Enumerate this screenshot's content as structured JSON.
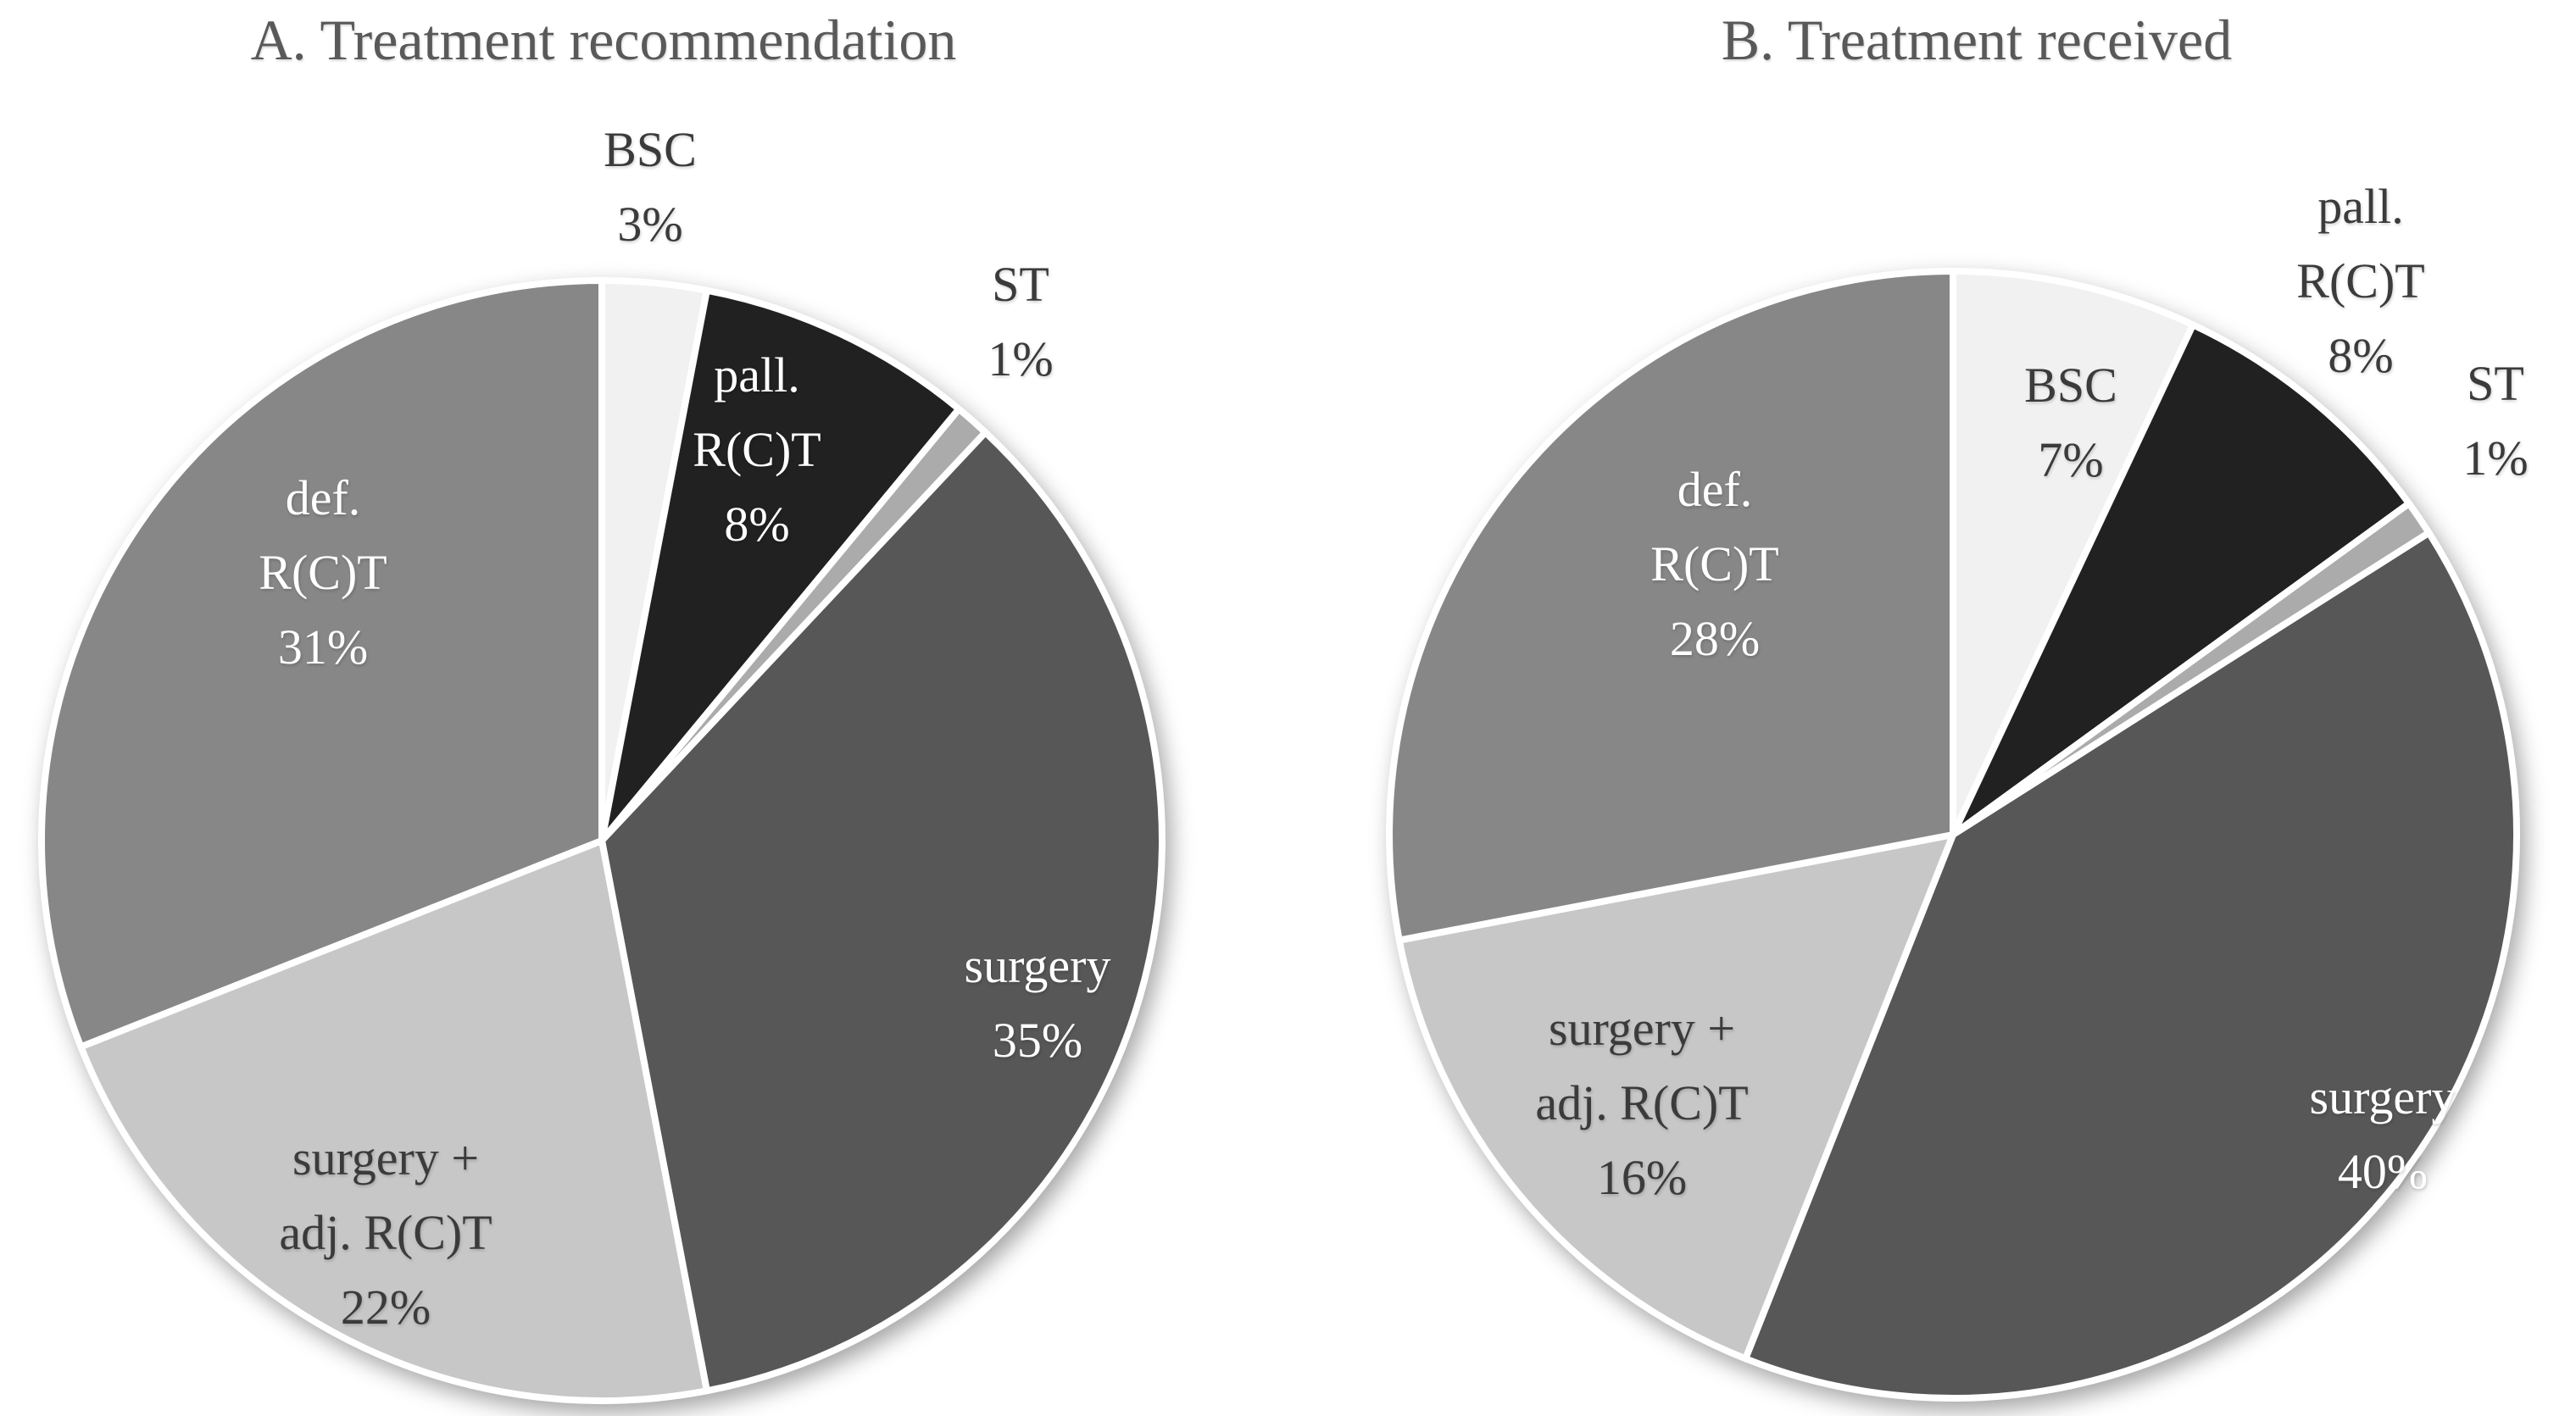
{
  "figure": {
    "background": "#ffffff",
    "title_color": "#595959",
    "label_color_dark": "#3b3b3b",
    "label_color_light": "#ffffff"
  },
  "chart_data": [
    {
      "type": "pie",
      "title": "A. Treatment recommendation",
      "direction": "clockwise",
      "start_angle_deg": 0,
      "values_unit": "percent",
      "legend": "none",
      "slices": [
        {
          "label": "BSC",
          "value": 3,
          "pct_label": "3%",
          "color": "#f1f1f1",
          "label_lines": [
            "BSC"
          ],
          "placement": "outside",
          "label_r": 1.17,
          "label_angle": 4.2,
          "text": "dark"
        },
        {
          "label": "pall. R(C)T",
          "value": 8,
          "pct_label": "8%",
          "color": "#212121",
          "label_lines": [
            "pall.",
            "R(C)T"
          ],
          "placement": "inside",
          "label_r": 0.75,
          "label_angle": 21.7,
          "text": "light"
        },
        {
          "label": "ST",
          "value": 1,
          "pct_label": "1%",
          "color": "#ababab",
          "label_lines": [
            "ST"
          ],
          "placement": "outside",
          "label_r": 1.19,
          "label_angle": 38.9,
          "text": "dark"
        },
        {
          "label": "surgery",
          "value": 35,
          "pct_label": "35%",
          "color": "#575757",
          "label_lines": [
            "surgery"
          ],
          "placement": "inside",
          "label_r": 0.83,
          "label_angle": 110.5,
          "text": "light"
        },
        {
          "label": "surgery + adj. R(C)T",
          "value": 22,
          "pct_label": "22%",
          "color": "#c7c7c7",
          "label_lines": [
            "surgery +",
            "adj. R(C)T"
          ],
          "placement": "inside",
          "label_r": 0.8,
          "label_angle": 208.8,
          "text": "dark"
        },
        {
          "label": "def. R(C)T",
          "value": 31,
          "pct_label": "31%",
          "color": "#878787",
          "label_lines": [
            "def.",
            "R(C)T"
          ],
          "placement": "inside",
          "label_r": 0.69,
          "label_angle": 313.8,
          "text": "light"
        }
      ]
    },
    {
      "type": "pie",
      "title": "B. Treatment received",
      "direction": "clockwise",
      "start_angle_deg": 0,
      "values_unit": "percent",
      "legend": "none",
      "slices": [
        {
          "label": "BSC",
          "value": 7,
          "pct_label": "7%",
          "color": "#f1f1f1",
          "label_lines": [
            "BSC"
          ],
          "placement": "inside",
          "label_r": 0.76,
          "label_angle": 16.0,
          "text": "dark"
        },
        {
          "label": "pall. R(C)T",
          "value": 8,
          "pct_label": "8%",
          "color": "#212121",
          "label_lines": [
            "pall.",
            "R(C)T"
          ],
          "placement": "outside",
          "label_r": 1.22,
          "label_angle": 36.4,
          "text": "dark"
        },
        {
          "label": "ST",
          "value": 1,
          "pct_label": "1%",
          "color": "#ababab",
          "label_lines": [
            "ST"
          ],
          "placement": "outside",
          "label_r": 1.21,
          "label_angle": 52.7,
          "text": "dark"
        },
        {
          "label": "surgery",
          "value": 40,
          "pct_label": "40%",
          "color": "#575757",
          "label_lines": [
            "surgery"
          ],
          "placement": "inside",
          "label_r": 0.93,
          "label_angle": 124.9,
          "text": "light"
        },
        {
          "label": "surgery + adj. R(C)T",
          "value": 16,
          "pct_label": "16%",
          "color": "#c7c7c7",
          "label_lines": [
            "surgery +",
            "adj. R(C)T"
          ],
          "placement": "inside",
          "label_r": 0.73,
          "label_angle": 229.2,
          "text": "dark"
        },
        {
          "label": "def. R(C)T",
          "value": 28,
          "pct_label": "28%",
          "color": "#878787",
          "label_lines": [
            "def.",
            "R(C)T"
          ],
          "placement": "inside",
          "label_r": 0.64,
          "label_angle": 318.6,
          "text": "light"
        }
      ]
    }
  ]
}
